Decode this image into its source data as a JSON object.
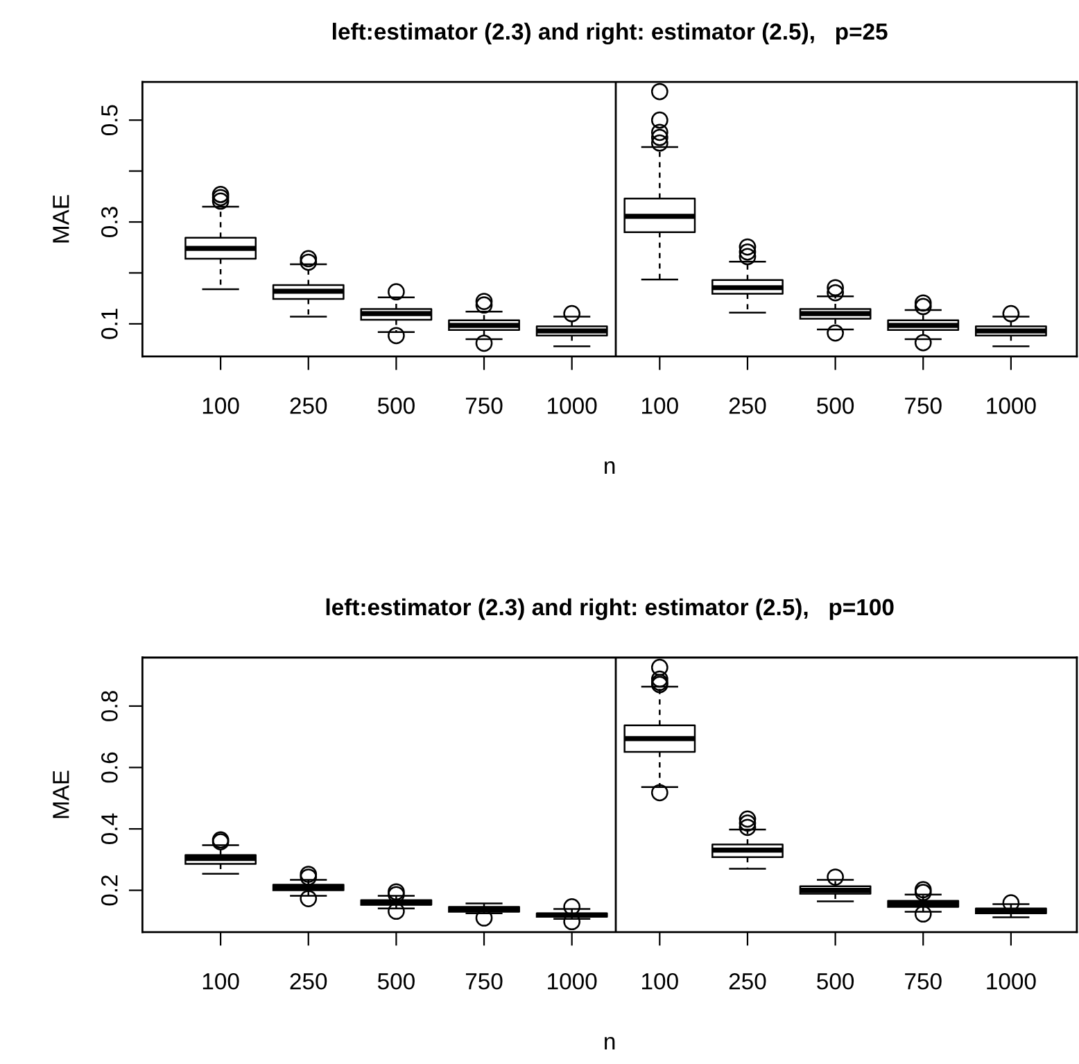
{
  "chart_data": [
    {
      "type": "box",
      "title": "left:estimator (2.3) and right: estimator (2.5),   p=25",
      "xlabel": "n",
      "ylabel": "MAE",
      "categories": [
        "100",
        "250",
        "500",
        "750",
        "1000",
        "100",
        "250",
        "500",
        "750",
        "1000"
      ],
      "boxes": [
        {
          "low": 0.168,
          "q1": 0.228,
          "median": 0.248,
          "q3": 0.269,
          "high": 0.33,
          "outliers": [
            0.354,
            0.348,
            0.341
          ]
        },
        {
          "low": 0.114,
          "q1": 0.149,
          "median": 0.164,
          "q3": 0.176,
          "high": 0.217,
          "outliers": [
            0.228,
            0.221
          ]
        },
        {
          "low": 0.084,
          "q1": 0.108,
          "median": 0.12,
          "q3": 0.129,
          "high": 0.152,
          "outliers": [
            0.163,
            0.077
          ]
        },
        {
          "low": 0.07,
          "q1": 0.088,
          "median": 0.097,
          "q3": 0.107,
          "high": 0.124,
          "outliers": [
            0.144,
            0.137,
            0.062
          ]
        },
        {
          "low": 0.056,
          "q1": 0.077,
          "median": 0.086,
          "q3": 0.095,
          "high": 0.114,
          "outliers": [
            0.12
          ]
        },
        {
          "low": 0.187,
          "q1": 0.28,
          "median": 0.311,
          "q3": 0.346,
          "high": 0.447,
          "outliers": [
            0.556,
            0.5,
            0.476,
            0.466,
            0.455
          ]
        },
        {
          "low": 0.122,
          "q1": 0.159,
          "median": 0.171,
          "q3": 0.186,
          "high": 0.222,
          "outliers": [
            0.251,
            0.241,
            0.232
          ]
        },
        {
          "low": 0.089,
          "q1": 0.11,
          "median": 0.12,
          "q3": 0.129,
          "high": 0.154,
          "outliers": [
            0.171,
            0.161,
            0.082
          ]
        },
        {
          "low": 0.07,
          "q1": 0.088,
          "median": 0.097,
          "q3": 0.107,
          "high": 0.127,
          "outliers": [
            0.141,
            0.134,
            0.063
          ]
        },
        {
          "low": 0.056,
          "q1": 0.077,
          "median": 0.086,
          "q3": 0.095,
          "high": 0.114,
          "outliers": [
            0.12
          ]
        }
      ],
      "ylim": [
        0.036,
        0.575
      ],
      "yticks": [
        0.1,
        {
          "value": 0.2,
          "label": null
        },
        0.3,
        {
          "value": 0.4,
          "label": null
        },
        0.5
      ],
      "grid": false,
      "legend": false
    },
    {
      "type": "box",
      "title": "left:estimator (2.3) and right: estimator (2.5),   p=100",
      "xlabel": "n",
      "ylabel": "MAE",
      "categories": [
        "100",
        "250",
        "500",
        "750",
        "1000",
        "100",
        "250",
        "500",
        "750",
        "1000"
      ],
      "boxes": [
        {
          "low": 0.254,
          "q1": 0.286,
          "median": 0.304,
          "q3": 0.315,
          "high": 0.347,
          "outliers": [
            0.364,
            0.358
          ]
        },
        {
          "low": 0.182,
          "q1": 0.2,
          "median": 0.209,
          "q3": 0.218,
          "high": 0.234,
          "outliers": [
            0.252,
            0.243,
            0.173
          ]
        },
        {
          "low": 0.141,
          "q1": 0.153,
          "median": 0.159,
          "q3": 0.168,
          "high": 0.182,
          "outliers": [
            0.195,
            0.186,
            0.132
          ]
        },
        {
          "low": 0.125,
          "q1": 0.13,
          "median": 0.137,
          "q3": 0.146,
          "high": 0.157,
          "outliers": [
            0.11
          ]
        },
        {
          "low": 0.107,
          "q1": 0.114,
          "median": 0.119,
          "q3": 0.125,
          "high": 0.139,
          "outliers": [
            0.146,
            0.098
          ]
        },
        {
          "low": 0.536,
          "q1": 0.651,
          "median": 0.694,
          "q3": 0.737,
          "high": 0.863,
          "outliers": [
            0.926,
            0.888,
            0.877,
            0.87,
            0.518
          ]
        },
        {
          "low": 0.27,
          "q1": 0.308,
          "median": 0.331,
          "q3": 0.349,
          "high": 0.398,
          "outliers": [
            0.432,
            0.419,
            0.405
          ]
        },
        {
          "low": 0.164,
          "q1": 0.189,
          "median": 0.2,
          "q3": 0.213,
          "high": 0.234,
          "outliers": [
            0.243
          ]
        },
        {
          "low": 0.13,
          "q1": 0.146,
          "median": 0.155,
          "q3": 0.166,
          "high": 0.186,
          "outliers": [
            0.202,
            0.193,
            0.123
          ]
        },
        {
          "low": 0.112,
          "q1": 0.125,
          "median": 0.134,
          "q3": 0.141,
          "high": 0.155,
          "outliers": [
            0.159
          ]
        }
      ],
      "ylim": [
        0.064,
        0.958
      ],
      "yticks": [
        0.2,
        0.4,
        0.6,
        0.8
      ],
      "grid": false,
      "legend": false
    }
  ]
}
